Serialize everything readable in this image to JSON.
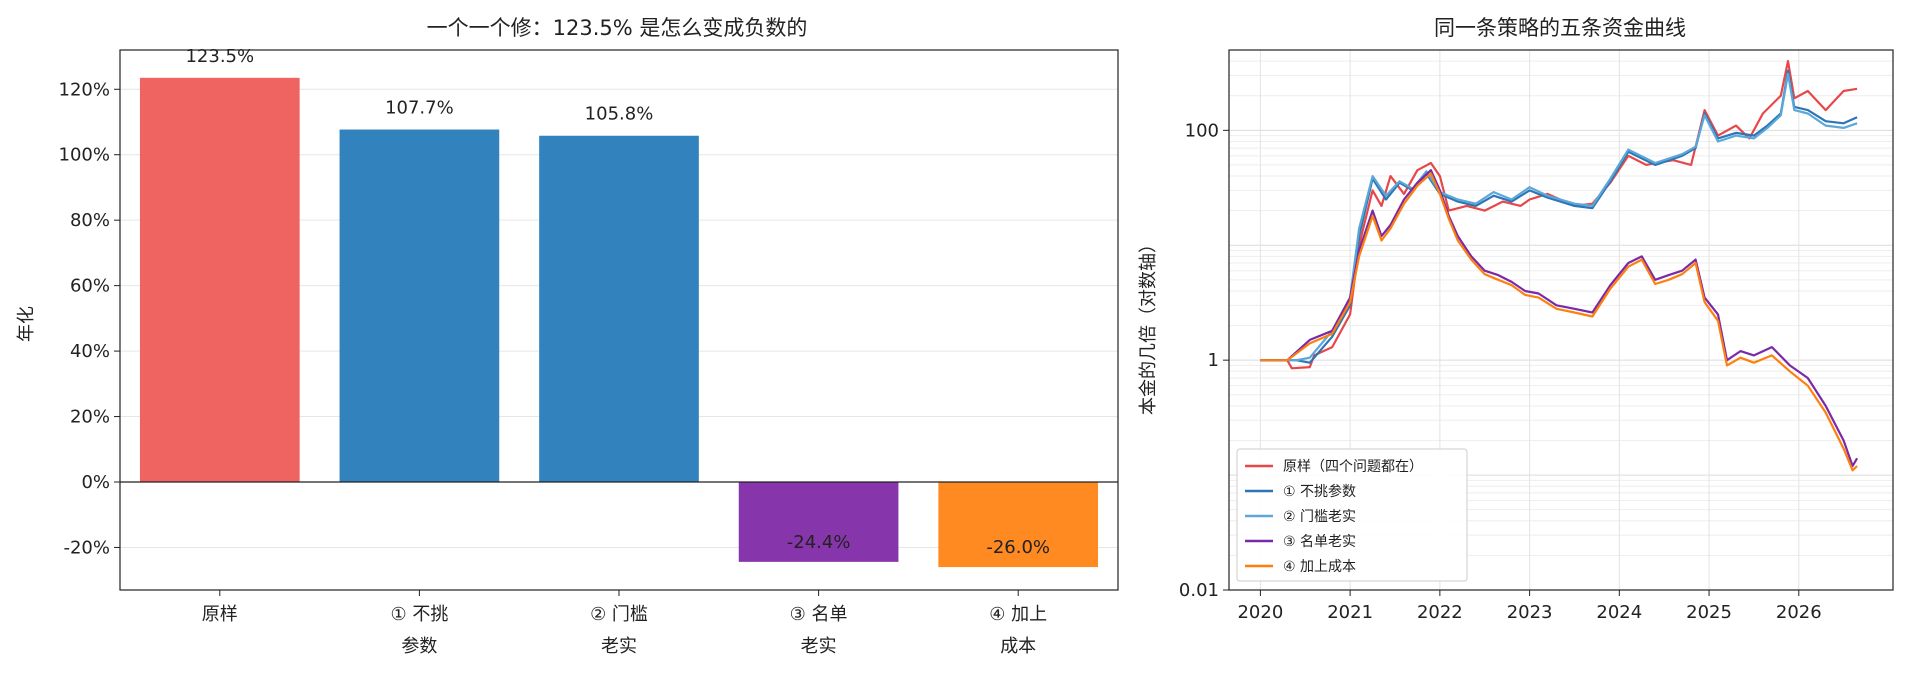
{
  "chart_data": [
    {
      "type": "bar",
      "title": "一个一个修：123.5% 是怎么变成负数的",
      "xlabel": "",
      "ylabel": "年化",
      "categories": [
        [
          "原样"
        ],
        [
          "① 不挑",
          "参数"
        ],
        [
          "② 门槛",
          "老实"
        ],
        [
          "③ 名单",
          "老实"
        ],
        [
          "④ 加上",
          "成本"
        ]
      ],
      "values": [
        123.5,
        107.7,
        105.8,
        -24.4,
        -26.0
      ],
      "value_labels": [
        "123.5%",
        "107.7%",
        "105.8%",
        "-24.4%",
        "-26.0%"
      ],
      "colors": [
        "#ef6461",
        "#3282bd",
        "#3282bd",
        "#8635ab",
        "#ff8a22"
      ],
      "ylim": [
        -33,
        132
      ],
      "yticks": [
        -20,
        0,
        20,
        40,
        60,
        80,
        100,
        120
      ],
      "ytick_labels": [
        "-20%",
        "0%",
        "20%",
        "40%",
        "60%",
        "80%",
        "100%",
        "120%"
      ],
      "grid": true
    },
    {
      "type": "line",
      "title": "同一条策略的五条资金曲线",
      "xlabel": "",
      "ylabel": "本金的几倍（对数轴）",
      "yscale": "log",
      "xlim": [
        2019.65,
        2027.05
      ],
      "ylim": [
        0.01,
        500
      ],
      "xticks": [
        2020,
        2021,
        2022,
        2023,
        2024,
        2025,
        2026
      ],
      "xtick_labels": [
        "2020",
        "2021",
        "2022",
        "2023",
        "2024",
        "2025",
        "2026"
      ],
      "yticks": [
        0.01,
        1,
        100
      ],
      "ytick_labels": [
        "0.01",
        "1",
        "100"
      ],
      "grid": true,
      "legend_position": "lower-left",
      "series": [
        {
          "name": "原样（四个问题都在）",
          "color": "#e8474a",
          "points": [
            [
              2020.0,
              1.0
            ],
            [
              2020.3,
              1.0
            ],
            [
              2020.35,
              0.85
            ],
            [
              2020.55,
              0.87
            ],
            [
              2020.6,
              1.1
            ],
            [
              2020.8,
              1.3
            ],
            [
              2021.0,
              2.5
            ],
            [
              2021.1,
              10
            ],
            [
              2021.25,
              30
            ],
            [
              2021.35,
              22
            ],
            [
              2021.45,
              40
            ],
            [
              2021.6,
              28
            ],
            [
              2021.75,
              45
            ],
            [
              2021.9,
              52
            ],
            [
              2022.0,
              40
            ],
            [
              2022.1,
              20
            ],
            [
              2022.3,
              22
            ],
            [
              2022.5,
              20
            ],
            [
              2022.7,
              24
            ],
            [
              2022.9,
              22
            ],
            [
              2023.0,
              25
            ],
            [
              2023.2,
              28
            ],
            [
              2023.5,
              22
            ],
            [
              2023.7,
              23
            ],
            [
              2023.9,
              35
            ],
            [
              2024.1,
              60
            ],
            [
              2024.3,
              50
            ],
            [
              2024.6,
              55
            ],
            [
              2024.8,
              50
            ],
            [
              2024.95,
              150
            ],
            [
              2025.1,
              90
            ],
            [
              2025.3,
              110
            ],
            [
              2025.45,
              85
            ],
            [
              2025.6,
              140
            ],
            [
              2025.8,
              200
            ],
            [
              2025.88,
              400
            ],
            [
              2025.95,
              190
            ],
            [
              2026.1,
              220
            ],
            [
              2026.3,
              150
            ],
            [
              2026.5,
              220
            ],
            [
              2026.65,
              230
            ]
          ]
        },
        {
          "name": "① 不挑参数",
          "color": "#2c76b6",
          "points": [
            [
              2020.0,
              1.0
            ],
            [
              2020.4,
              1.0
            ],
            [
              2020.55,
              0.95
            ],
            [
              2020.8,
              1.6
            ],
            [
              2021.0,
              3.0
            ],
            [
              2021.1,
              12
            ],
            [
              2021.25,
              38
            ],
            [
              2021.4,
              25
            ],
            [
              2021.55,
              35
            ],
            [
              2021.7,
              30
            ],
            [
              2021.85,
              42
            ],
            [
              2022.0,
              28
            ],
            [
              2022.2,
              24
            ],
            [
              2022.4,
              22
            ],
            [
              2022.6,
              27
            ],
            [
              2022.8,
              24
            ],
            [
              2023.0,
              30
            ],
            [
              2023.2,
              26
            ],
            [
              2023.5,
              22
            ],
            [
              2023.7,
              21
            ],
            [
              2023.9,
              36
            ],
            [
              2024.1,
              65
            ],
            [
              2024.4,
              50
            ],
            [
              2024.7,
              60
            ],
            [
              2024.85,
              70
            ],
            [
              2024.95,
              140
            ],
            [
              2025.1,
              85
            ],
            [
              2025.3,
              95
            ],
            [
              2025.5,
              90
            ],
            [
              2025.65,
              110
            ],
            [
              2025.8,
              140
            ],
            [
              2025.88,
              330
            ],
            [
              2025.95,
              160
            ],
            [
              2026.1,
              150
            ],
            [
              2026.3,
              120
            ],
            [
              2026.5,
              115
            ],
            [
              2026.65,
              130
            ]
          ]
        },
        {
          "name": "② 门槛老实",
          "color": "#5ba8d8",
          "points": [
            [
              2020.0,
              1.0
            ],
            [
              2020.4,
              1.0
            ],
            [
              2020.55,
              1.05
            ],
            [
              2020.8,
              1.8
            ],
            [
              2021.0,
              3.5
            ],
            [
              2021.1,
              14
            ],
            [
              2021.25,
              40
            ],
            [
              2021.4,
              27
            ],
            [
              2021.55,
              36
            ],
            [
              2021.7,
              31
            ],
            [
              2021.85,
              44
            ],
            [
              2022.0,
              29
            ],
            [
              2022.2,
              25
            ],
            [
              2022.4,
              23
            ],
            [
              2022.6,
              29
            ],
            [
              2022.8,
              25
            ],
            [
              2023.0,
              32
            ],
            [
              2023.2,
              27
            ],
            [
              2023.5,
              23
            ],
            [
              2023.7,
              22
            ],
            [
              2023.9,
              38
            ],
            [
              2024.1,
              68
            ],
            [
              2024.4,
              52
            ],
            [
              2024.7,
              62
            ],
            [
              2024.85,
              72
            ],
            [
              2024.95,
              135
            ],
            [
              2025.1,
              80
            ],
            [
              2025.3,
              90
            ],
            [
              2025.5,
              85
            ],
            [
              2025.65,
              105
            ],
            [
              2025.8,
              135
            ],
            [
              2025.88,
              310
            ],
            [
              2025.95,
              150
            ],
            [
              2026.1,
              140
            ],
            [
              2026.3,
              110
            ],
            [
              2026.5,
              105
            ],
            [
              2026.65,
              115
            ]
          ]
        },
        {
          "name": "③ 名单老实",
          "color": "#7a2aa6",
          "points": [
            [
              2020.0,
              1.0
            ],
            [
              2020.3,
              1.0
            ],
            [
              2020.55,
              1.5
            ],
            [
              2020.8,
              1.8
            ],
            [
              2021.0,
              3.5
            ],
            [
              2021.1,
              9
            ],
            [
              2021.25,
              20
            ],
            [
              2021.35,
              12
            ],
            [
              2021.45,
              15
            ],
            [
              2021.6,
              25
            ],
            [
              2021.75,
              35
            ],
            [
              2021.9,
              45
            ],
            [
              2022.0,
              30
            ],
            [
              2022.1,
              18
            ],
            [
              2022.2,
              12
            ],
            [
              2022.35,
              8
            ],
            [
              2022.5,
              6
            ],
            [
              2022.65,
              5.5
            ],
            [
              2022.8,
              4.8
            ],
            [
              2022.95,
              4.0
            ],
            [
              2023.1,
              3.8
            ],
            [
              2023.3,
              3.0
            ],
            [
              2023.5,
              2.8
            ],
            [
              2023.7,
              2.6
            ],
            [
              2023.9,
              4.5
            ],
            [
              2024.1,
              7
            ],
            [
              2024.25,
              8
            ],
            [
              2024.4,
              5
            ],
            [
              2024.55,
              5.5
            ],
            [
              2024.7,
              6
            ],
            [
              2024.85,
              7.5
            ],
            [
              2024.95,
              3.5
            ],
            [
              2025.1,
              2.5
            ],
            [
              2025.2,
              1.0
            ],
            [
              2025.35,
              1.2
            ],
            [
              2025.5,
              1.1
            ],
            [
              2025.7,
              1.3
            ],
            [
              2025.9,
              0.9
            ],
            [
              2026.1,
              0.7
            ],
            [
              2026.3,
              0.4
            ],
            [
              2026.5,
              0.2
            ],
            [
              2026.6,
              0.12
            ],
            [
              2026.65,
              0.14
            ]
          ]
        },
        {
          "name": "④ 加上成本",
          "color": "#ff7f0e",
          "points": [
            [
              2020.0,
              1.0
            ],
            [
              2020.3,
              1.0
            ],
            [
              2020.55,
              1.4
            ],
            [
              2020.8,
              1.7
            ],
            [
              2021.0,
              3.2
            ],
            [
              2021.1,
              8
            ],
            [
              2021.25,
              18
            ],
            [
              2021.35,
              11
            ],
            [
              2021.45,
              14
            ],
            [
              2021.6,
              23
            ],
            [
              2021.75,
              33
            ],
            [
              2021.9,
              42
            ],
            [
              2022.0,
              28
            ],
            [
              2022.1,
              17
            ],
            [
              2022.2,
              11
            ],
            [
              2022.35,
              7.5
            ],
            [
              2022.5,
              5.6
            ],
            [
              2022.65,
              5.0
            ],
            [
              2022.8,
              4.5
            ],
            [
              2022.95,
              3.7
            ],
            [
              2023.1,
              3.5
            ],
            [
              2023.3,
              2.8
            ],
            [
              2023.5,
              2.6
            ],
            [
              2023.7,
              2.4
            ],
            [
              2023.9,
              4.2
            ],
            [
              2024.1,
              6.5
            ],
            [
              2024.25,
              7.5
            ],
            [
              2024.4,
              4.6
            ],
            [
              2024.55,
              5.0
            ],
            [
              2024.7,
              5.6
            ],
            [
              2024.85,
              7.0
            ],
            [
              2024.95,
              3.2
            ],
            [
              2025.1,
              2.2
            ],
            [
              2025.2,
              0.9
            ],
            [
              2025.35,
              1.05
            ],
            [
              2025.5,
              0.95
            ],
            [
              2025.7,
              1.1
            ],
            [
              2025.9,
              0.8
            ],
            [
              2026.1,
              0.6
            ],
            [
              2026.3,
              0.35
            ],
            [
              2026.5,
              0.17
            ],
            [
              2026.6,
              0.11
            ],
            [
              2026.65,
              0.12
            ]
          ]
        }
      ]
    }
  ]
}
